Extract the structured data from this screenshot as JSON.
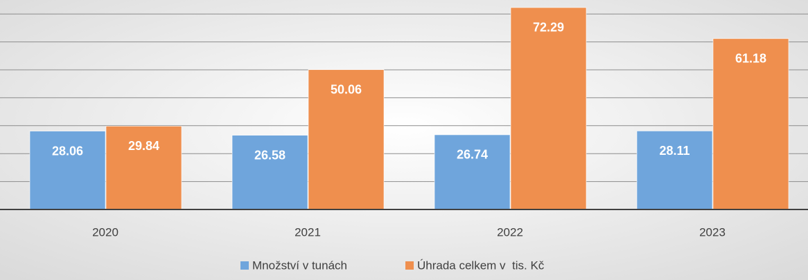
{
  "chart_data": {
    "type": "bar",
    "categories": [
      "2020",
      "2021",
      "2022",
      "2023"
    ],
    "series": [
      {
        "name": "Množství v tunách",
        "color": "#6fa5dc",
        "values": [
          28.06,
          26.58,
          26.74,
          28.11
        ]
      },
      {
        "name": "Úhrada celkem v  tis. Kč",
        "color": "#ef8f4e",
        "values": [
          29.84,
          50.06,
          72.29,
          61.18
        ]
      }
    ],
    "ylim": [
      0,
      75
    ],
    "yticks": [
      0,
      10,
      20,
      30,
      40,
      50,
      60,
      70
    ],
    "grid": true,
    "legend": "bottom"
  }
}
